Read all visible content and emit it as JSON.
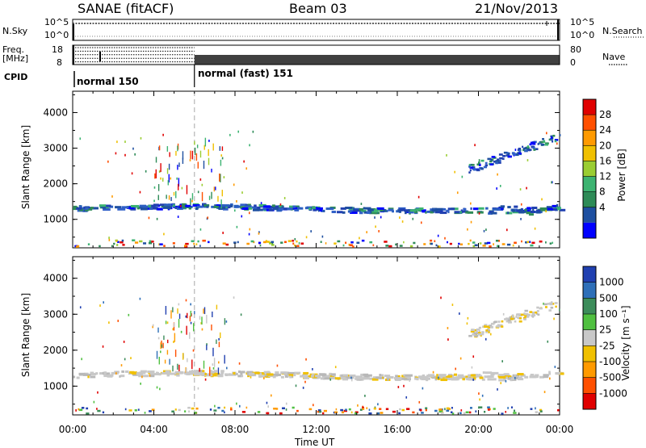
{
  "header": {
    "title_left": "SANAE (fitACF)",
    "title_mid": "Beam 03",
    "title_right": "21/Nov/2013"
  },
  "meta_panels": {
    "nsky_label": "N.Sky",
    "nsky_ticks": [
      "10^5",
      "10^0"
    ],
    "nsearch_label": "N.Search",
    "nsearch_ticks": [
      "10^5",
      "10^0"
    ],
    "freq_label_1": "Freq.",
    "freq_label_2": "[MHz]",
    "freq_ticks": [
      "18",
      "8"
    ],
    "nave_label": "Nave",
    "nave_ticks": [
      "80",
      "0"
    ],
    "cpid_label": "CPID",
    "cpid_segments": [
      {
        "label": "normal 150",
        "start_hour": 0,
        "end_hour": 6
      },
      {
        "label": "normal (fast) 151",
        "start_hour": 6,
        "end_hour": 24
      }
    ]
  },
  "chart_data": [
    {
      "type": "heatmap",
      "name": "power-panel",
      "xlabel": "Time UT",
      "ylabel": "Slant Range [km]",
      "x_ticks": [
        "00:00",
        "04:00",
        "08:00",
        "12:00",
        "16:00",
        "20:00",
        "00:00"
      ],
      "x_tick_hours": [
        0,
        4,
        8,
        12,
        16,
        20,
        24
      ],
      "xlim": [
        0,
        24
      ],
      "ylim": [
        200,
        4600
      ],
      "y_ticks": [
        1000,
        2000,
        3000,
        4000
      ],
      "colorbar_label": "Power [dB]",
      "colorbar_ticks": [
        "28",
        "24",
        "20",
        "16",
        "12",
        "8",
        "4"
      ],
      "colorbar_colors": [
        "#e00000",
        "#ff5000",
        "#ff9a00",
        "#f0c000",
        "#9acd32",
        "#3cb371",
        "#2e8b57",
        "#1e4fa0",
        "#0000ff"
      ],
      "mode_change_hour": 6
    },
    {
      "type": "heatmap",
      "name": "velocity-panel",
      "xlabel": "Time UT",
      "ylabel": "Slant Range [km]",
      "xlim": [
        0,
        24
      ],
      "ylim": [
        200,
        4600
      ],
      "y_ticks": [
        1000,
        2000,
        3000,
        4000
      ],
      "colorbar_label": "Velocity [m s⁻¹]",
      "colorbar_ticks": [
        "1000",
        "500",
        "100",
        "25",
        "-25",
        "-100",
        "-500",
        "-1000"
      ],
      "colorbar_colors": [
        "#2040b0",
        "#2e6fb8",
        "#3c8c5a",
        "#50c040",
        "#c8c8c8",
        "#f0c000",
        "#ff9a00",
        "#ff5000",
        "#e00000"
      ],
      "mode_change_hour": 6
    }
  ]
}
